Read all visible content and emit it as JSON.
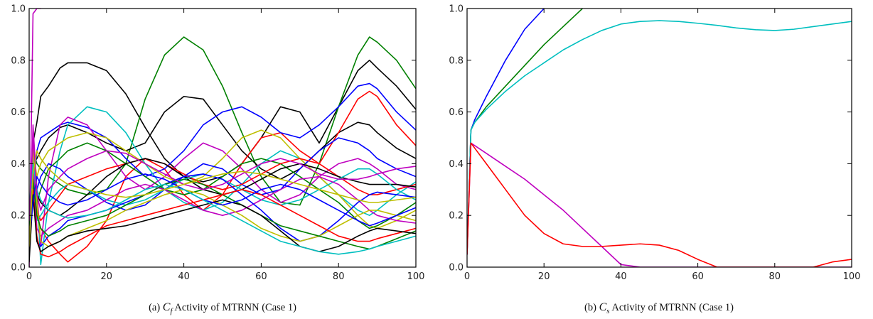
{
  "chart_data": [
    {
      "type": "line",
      "caption": {
        "prefix": "(a)",
        "sym": "C",
        "sub": "f",
        "rest": "Activity of MTRNN (Case 1)"
      },
      "xlim": [
        0,
        100
      ],
      "ylim": [
        0,
        1
      ],
      "xticks": [
        "0",
        "20",
        "40",
        "60",
        "80",
        "100"
      ],
      "yticks": [
        "0.0",
        "0.2",
        "0.4",
        "0.6",
        "0.8",
        "1.0"
      ],
      "grid": false,
      "x": [
        0,
        1,
        2,
        3,
        5,
        8,
        10,
        15,
        20,
        25,
        30,
        35,
        40,
        45,
        50,
        55,
        60,
        65,
        70,
        75,
        80,
        85,
        88,
        90,
        95,
        100
      ],
      "series": [
        {
          "color": "#bf00bf",
          "values": [
            0.0,
            0.98,
            1.0,
            1.0,
            null,
            null,
            null,
            null,
            null,
            null,
            null,
            null,
            null,
            null,
            null,
            null,
            null,
            null,
            null,
            null,
            null,
            null,
            null,
            null,
            null,
            null
          ]
        },
        {
          "color": "#000000",
          "values": [
            0.15,
            0.48,
            0.56,
            0.66,
            0.7,
            0.77,
            0.79,
            0.79,
            0.76,
            0.67,
            0.54,
            0.42,
            0.35,
            0.33,
            0.35,
            0.4,
            0.5,
            0.62,
            0.6,
            0.48,
            0.62,
            0.76,
            0.8,
            0.77,
            0.7,
            0.61
          ]
        },
        {
          "color": "#008000",
          "values": [
            0.1,
            0.45,
            0.4,
            0.38,
            0.35,
            0.32,
            0.3,
            0.28,
            0.3,
            0.4,
            0.65,
            0.82,
            0.89,
            0.84,
            0.7,
            0.52,
            0.35,
            0.25,
            0.24,
            0.4,
            0.62,
            0.82,
            0.89,
            0.87,
            0.8,
            0.69
          ]
        },
        {
          "color": "#000000",
          "values": [
            0.1,
            0.4,
            0.42,
            0.45,
            0.5,
            0.54,
            0.55,
            0.52,
            0.48,
            0.45,
            0.48,
            0.6,
            0.66,
            0.65,
            0.55,
            0.45,
            0.38,
            0.34,
            0.38,
            0.45,
            0.52,
            0.56,
            0.55,
            0.52,
            0.46,
            0.42
          ]
        },
        {
          "color": "#ff0000",
          "values": [
            0.05,
            0.35,
            0.2,
            0.15,
            0.1,
            0.05,
            0.02,
            0.08,
            0.18,
            0.35,
            0.42,
            0.38,
            0.28,
            0.22,
            0.28,
            0.4,
            0.5,
            0.52,
            0.45,
            0.4,
            0.52,
            0.65,
            0.68,
            0.66,
            0.55,
            0.47
          ]
        },
        {
          "color": "#0000ff",
          "values": [
            0.12,
            0.3,
            0.45,
            0.5,
            0.52,
            0.55,
            0.56,
            0.54,
            0.5,
            0.42,
            0.35,
            0.38,
            0.45,
            0.55,
            0.6,
            0.62,
            0.58,
            0.52,
            0.5,
            0.55,
            0.62,
            0.7,
            0.71,
            0.69,
            0.6,
            0.53
          ]
        },
        {
          "color": "#00bfbf",
          "values": [
            0.2,
            0.48,
            0.3,
            0.01,
            0.25,
            0.45,
            0.55,
            0.62,
            0.6,
            0.52,
            0.4,
            0.3,
            0.25,
            0.22,
            0.25,
            0.32,
            0.4,
            0.45,
            0.42,
            0.35,
            0.28,
            0.22,
            0.2,
            0.22,
            0.28,
            0.33
          ]
        },
        {
          "color": "#bf00bf",
          "values": [
            0.05,
            0.55,
            0.3,
            0.08,
            0.35,
            0.55,
            0.58,
            0.55,
            0.45,
            0.35,
            0.3,
            0.35,
            0.42,
            0.48,
            0.45,
            0.38,
            0.3,
            0.25,
            0.28,
            0.35,
            0.4,
            0.42,
            0.4,
            0.38,
            0.32,
            0.3
          ]
        },
        {
          "color": "#bfbf00",
          "values": [
            0.1,
            0.45,
            0.35,
            0.4,
            0.45,
            0.48,
            0.5,
            0.52,
            0.5,
            0.45,
            0.4,
            0.35,
            0.32,
            0.35,
            0.42,
            0.5,
            0.53,
            0.5,
            0.42,
            0.35,
            0.28,
            0.2,
            0.16,
            0.15,
            0.18,
            0.22
          ]
        },
        {
          "color": "#0000ff",
          "values": [
            0.15,
            0.4,
            0.3,
            0.35,
            0.4,
            0.38,
            0.35,
            0.3,
            0.25,
            0.22,
            0.24,
            0.3,
            0.35,
            0.4,
            0.38,
            0.32,
            0.28,
            0.3,
            0.38,
            0.45,
            0.5,
            0.48,
            0.45,
            0.42,
            0.38,
            0.35
          ]
        },
        {
          "color": "#008000",
          "values": [
            0.18,
            0.42,
            0.25,
            0.3,
            0.38,
            0.42,
            0.45,
            0.48,
            0.45,
            0.4,
            0.35,
            0.3,
            0.28,
            0.3,
            0.35,
            0.4,
            0.42,
            0.4,
            0.35,
            0.3,
            0.25,
            0.18,
            0.15,
            0.16,
            0.2,
            0.25
          ]
        },
        {
          "color": "#ff0000",
          "values": [
            0.12,
            0.38,
            0.22,
            0.18,
            0.22,
            0.28,
            0.32,
            0.35,
            0.38,
            0.4,
            0.42,
            0.4,
            0.36,
            0.32,
            0.3,
            0.32,
            0.36,
            0.4,
            0.42,
            0.4,
            0.35,
            0.3,
            0.28,
            0.28,
            0.3,
            0.32
          ]
        },
        {
          "color": "#000000",
          "values": [
            0.08,
            0.36,
            0.28,
            0.25,
            0.22,
            0.2,
            0.22,
            0.28,
            0.35,
            0.4,
            0.42,
            0.4,
            0.35,
            0.3,
            0.28,
            0.3,
            0.34,
            0.38,
            0.4,
            0.38,
            0.35,
            0.33,
            0.32,
            0.32,
            0.32,
            0.31
          ]
        },
        {
          "color": "#00bfbf",
          "values": [
            0.2,
            0.44,
            0.18,
            0.2,
            0.25,
            0.3,
            0.32,
            0.3,
            0.26,
            0.24,
            0.26,
            0.3,
            0.34,
            0.36,
            0.34,
            0.3,
            0.26,
            0.24,
            0.26,
            0.3,
            0.34,
            0.38,
            0.38,
            0.36,
            0.3,
            0.26
          ]
        },
        {
          "color": "#bf00bf",
          "values": [
            0.1,
            0.4,
            0.15,
            0.12,
            0.15,
            0.18,
            0.2,
            0.22,
            0.26,
            0.3,
            0.32,
            0.3,
            0.26,
            0.22,
            0.2,
            0.22,
            0.26,
            0.3,
            0.34,
            0.35,
            0.32,
            0.26,
            0.22,
            0.2,
            0.18,
            0.17
          ]
        },
        {
          "color": "#0000ff",
          "values": [
            0.06,
            0.32,
            0.1,
            0.08,
            0.12,
            0.15,
            0.18,
            0.2,
            0.22,
            0.25,
            0.28,
            0.32,
            0.35,
            0.36,
            0.34,
            0.28,
            0.22,
            0.15,
            0.1,
            0.12,
            0.18,
            0.25,
            0.28,
            0.29,
            0.28,
            0.27
          ]
        },
        {
          "color": "#bfbf00",
          "values": [
            0.14,
            0.46,
            0.25,
            0.1,
            0.08,
            0.1,
            0.12,
            0.15,
            0.18,
            0.22,
            0.25,
            0.28,
            0.3,
            0.28,
            0.24,
            0.2,
            0.15,
            0.12,
            0.1,
            0.12,
            0.16,
            0.2,
            0.22,
            0.22,
            0.2,
            0.18
          ]
        },
        {
          "color": "#008000",
          "values": [
            0.16,
            0.34,
            0.2,
            0.15,
            0.12,
            0.14,
            0.16,
            0.18,
            0.2,
            0.24,
            0.28,
            0.32,
            0.34,
            0.32,
            0.28,
            0.24,
            0.2,
            0.16,
            0.14,
            0.12,
            0.1,
            0.08,
            0.07,
            0.08,
            0.11,
            0.14
          ]
        },
        {
          "color": "#ff0000",
          "values": [
            0.04,
            0.3,
            0.12,
            0.05,
            0.04,
            0.06,
            0.08,
            0.12,
            0.16,
            0.18,
            0.2,
            0.22,
            0.24,
            0.26,
            0.28,
            0.3,
            0.28,
            0.24,
            0.2,
            0.16,
            0.12,
            0.1,
            0.1,
            0.11,
            0.13,
            0.15
          ]
        },
        {
          "color": "#000000",
          "values": [
            0.02,
            0.28,
            0.1,
            0.06,
            0.08,
            0.1,
            0.12,
            0.14,
            0.15,
            0.16,
            0.18,
            0.2,
            0.22,
            0.24,
            0.26,
            0.24,
            0.2,
            0.14,
            0.08,
            0.06,
            0.08,
            0.12,
            0.14,
            0.15,
            0.14,
            0.13
          ]
        },
        {
          "color": "#0000ff",
          "values": [
            0.1,
            0.25,
            0.35,
            0.32,
            0.28,
            0.25,
            0.24,
            0.26,
            0.3,
            0.34,
            0.36,
            0.34,
            0.3,
            0.26,
            0.24,
            0.26,
            0.3,
            0.32,
            0.3,
            0.26,
            0.22,
            0.18,
            0.16,
            0.17,
            0.2,
            0.23
          ]
        },
        {
          "color": "#00bfbf",
          "values": [
            0.22,
            0.4,
            0.3,
            0.26,
            0.22,
            0.2,
            0.19,
            0.2,
            0.22,
            0.26,
            0.3,
            0.32,
            0.3,
            0.26,
            0.22,
            0.18,
            0.14,
            0.1,
            0.08,
            0.06,
            0.05,
            0.06,
            0.07,
            0.08,
            0.1,
            0.12
          ]
        },
        {
          "color": "#bf00bf",
          "values": [
            0.18,
            0.5,
            0.28,
            0.22,
            0.3,
            0.35,
            0.38,
            0.42,
            0.45,
            0.44,
            0.4,
            0.36,
            0.32,
            0.3,
            0.32,
            0.36,
            0.4,
            0.42,
            0.4,
            0.36,
            0.34,
            0.34,
            0.35,
            0.36,
            0.38,
            0.39
          ]
        },
        {
          "color": "#bfbf00",
          "values": [
            0.08,
            0.36,
            0.45,
            0.42,
            0.38,
            0.34,
            0.32,
            0.3,
            0.28,
            0.27,
            0.28,
            0.3,
            0.32,
            0.34,
            0.36,
            0.37,
            0.36,
            0.34,
            0.32,
            0.3,
            0.28,
            0.26,
            0.25,
            0.25,
            0.26,
            0.27
          ]
        }
      ]
    },
    {
      "type": "line",
      "caption": {
        "prefix": "(b)",
        "sym": "C",
        "sub": "s",
        "rest": "Activity of MTRNN (Case 1)"
      },
      "xlim": [
        0,
        100
      ],
      "ylim": [
        0,
        1
      ],
      "xticks": [
        "0",
        "20",
        "40",
        "60",
        "80",
        "100"
      ],
      "yticks": [
        "0.0",
        "0.2",
        "0.4",
        "0.6",
        "0.8",
        "1.0"
      ],
      "grid": false,
      "x": [
        0,
        1,
        2,
        5,
        10,
        15,
        20,
        25,
        30,
        35,
        40,
        45,
        50,
        55,
        60,
        65,
        70,
        75,
        80,
        85,
        90,
        95,
        100
      ],
      "series": [
        {
          "color": "#0000ff",
          "values": [
            0.05,
            0.53,
            0.57,
            0.66,
            0.8,
            0.92,
            1.0,
            null,
            null,
            null,
            null,
            null,
            null,
            null,
            null,
            null,
            null,
            null,
            null,
            null,
            null,
            null,
            null
          ]
        },
        {
          "color": "#008000",
          "values": [
            0.05,
            0.53,
            0.56,
            0.62,
            0.7,
            0.78,
            0.86,
            0.93,
            1.0,
            null,
            null,
            null,
            null,
            null,
            null,
            null,
            null,
            null,
            null,
            null,
            null,
            null,
            null
          ]
        },
        {
          "color": "#00bfbf",
          "values": [
            0.05,
            0.53,
            0.56,
            0.61,
            0.68,
            0.74,
            0.79,
            0.84,
            0.88,
            0.915,
            0.94,
            0.95,
            0.953,
            0.95,
            0.943,
            0.935,
            0.925,
            0.918,
            0.915,
            0.92,
            0.93,
            0.94,
            0.95
          ]
        },
        {
          "color": "#bf00bf",
          "values": [
            0.05,
            0.48,
            0.47,
            0.44,
            0.39,
            0.34,
            0.28,
            0.22,
            0.15,
            0.08,
            0.01,
            0.0,
            0.0,
            0.0,
            0.0,
            0.0,
            0.0,
            0.0,
            0.0,
            0.0,
            0.0,
            0.0,
            0.0
          ]
        },
        {
          "color": "#ff0000",
          "values": [
            0.05,
            0.48,
            0.46,
            0.4,
            0.3,
            0.2,
            0.13,
            0.09,
            0.08,
            0.08,
            0.085,
            0.09,
            0.085,
            0.065,
            0.03,
            0.0,
            0.0,
            0.0,
            0.0,
            0.0,
            0.0,
            0.02,
            0.03
          ]
        }
      ]
    }
  ]
}
